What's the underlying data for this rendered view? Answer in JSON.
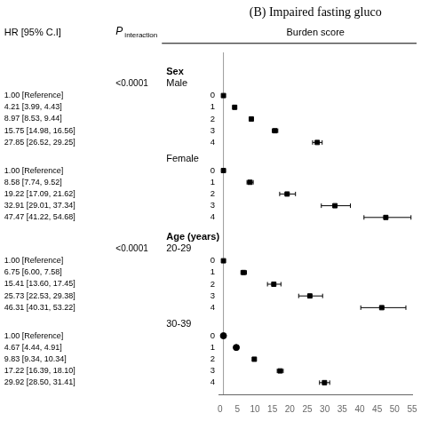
{
  "chart_data": {
    "type": "forest",
    "title": "(B) Impaired fasting gluco",
    "col_header_hr": "HR [95% C.I]",
    "col_header_p": "P",
    "col_header_p_sub": "interaction",
    "col_header_burden": "Burden score",
    "xlim": [
      -0.3,
      55
    ],
    "xticks": [
      0,
      5,
      10,
      15,
      20,
      25,
      30,
      35,
      40,
      45,
      50,
      55
    ],
    "reference_line": 1.0,
    "color": "#000000",
    "grid": false,
    "groups": [
      {
        "label": "Sex",
        "subgroups": [
          {
            "name": "Male",
            "p_interaction": "<0.0001",
            "categories": [
              0,
              1,
              2,
              3,
              4
            ],
            "values": [
              1.0,
              4.21,
              8.97,
              15.75,
              27.85
            ],
            "ci_lo": [
              1.0,
              3.99,
              8.53,
              14.98,
              26.52
            ],
            "ci_hi": [
              1.0,
              4.43,
              9.44,
              16.56,
              29.25
            ],
            "reference": [
              true,
              false,
              false,
              false,
              false
            ],
            "value_labels": [
              "1.00 [Reference]",
              "4.21 [3.99, 4.43]",
              "8.97 [8.53, 9.44]",
              "15.75 [14.98, 16.56]",
              "27.85 [26.52, 29.25]"
            ],
            "markers": [
              "square",
              "square",
              "square",
              "square",
              "square"
            ]
          },
          {
            "name": "Female",
            "categories": [
              0,
              1,
              2,
              3,
              4
            ],
            "values": [
              1.0,
              8.58,
              19.22,
              32.91,
              47.47
            ],
            "ci_lo": [
              1.0,
              7.74,
              17.09,
              29.01,
              41.22
            ],
            "ci_hi": [
              1.0,
              9.52,
              21.62,
              37.34,
              54.68
            ],
            "reference": [
              true,
              false,
              false,
              false,
              false
            ],
            "value_labels": [
              "1.00 [Reference]",
              "8.58 [7.74, 9.52]",
              "19.22 [17.09, 21.62]",
              "32.91 [29.01, 37.34]",
              "47.47 [41.22, 54.68]"
            ],
            "markers": [
              "square",
              "square",
              "square",
              "square",
              "square"
            ]
          }
        ]
      },
      {
        "label": "Age (years)",
        "subgroups": [
          {
            "name": "20-29",
            "p_interaction": "<0.0001",
            "categories": [
              0,
              1,
              2,
              3,
              4
            ],
            "values": [
              1.0,
              6.75,
              15.41,
              25.73,
              46.31
            ],
            "ci_lo": [
              1.0,
              6.0,
              13.6,
              22.53,
              40.31
            ],
            "ci_hi": [
              1.0,
              7.58,
              17.45,
              29.38,
              53.22
            ],
            "reference": [
              true,
              false,
              false,
              false,
              false
            ],
            "value_labels": [
              "1.00 [Reference]",
              "6.75 [6.00, 7.58]",
              "15.41 [13.60, 17.45]",
              "25.73 [22.53, 29.38]",
              "46.31 [40.31, 53.22]"
            ],
            "markers": [
              "square",
              "square",
              "square",
              "square",
              "square"
            ]
          },
          {
            "name": "30-39",
            "categories": [
              0,
              1,
              2,
              3,
              4
            ],
            "values": [
              1.0,
              4.67,
              9.83,
              17.22,
              29.92
            ],
            "ci_lo": [
              1.0,
              4.44,
              9.34,
              16.39,
              28.5
            ],
            "ci_hi": [
              1.0,
              4.91,
              10.34,
              18.1,
              31.41
            ],
            "reference": [
              true,
              false,
              false,
              false,
              false
            ],
            "value_labels": [
              "1.00 [Reference]",
              "4.67 [4.44, 4.91]",
              "9.83 [9.34, 10.34]",
              "17.22 [16.39, 18.10]",
              "29.92 [28.50, 31.41]"
            ],
            "markers": [
              "circle",
              "circle",
              "square",
              "square",
              "square"
            ]
          }
        ]
      }
    ]
  }
}
